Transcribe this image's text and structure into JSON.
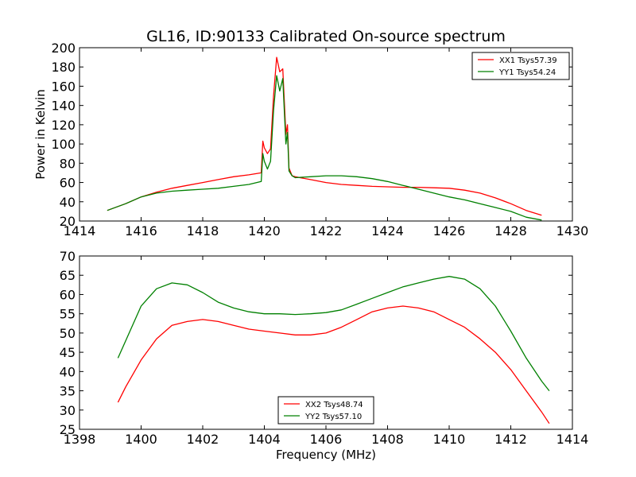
{
  "title": "GL16, ID:90133 Calibrated On-source spectrum",
  "chart_data": [
    {
      "type": "line",
      "xlim": [
        1414,
        1430
      ],
      "ylim": [
        20,
        200
      ],
      "xticks": [
        1414,
        1416,
        1418,
        1420,
        1422,
        1424,
        1426,
        1428,
        1430
      ],
      "yticks": [
        20,
        40,
        60,
        80,
        100,
        120,
        140,
        160,
        180,
        200
      ],
      "xlabel": "",
      "ylabel": "Power in Kelvin",
      "legend_position": "top-right",
      "series": [
        {
          "name": "XX1 Tsys57.39",
          "color": "#ff0000",
          "x": [
            1414.9,
            1415.5,
            1416.0,
            1416.5,
            1417.0,
            1417.5,
            1418.0,
            1418.5,
            1419.0,
            1419.5,
            1419.9,
            1419.95,
            1420.0,
            1420.1,
            1420.2,
            1420.3,
            1420.4,
            1420.5,
            1420.6,
            1420.7,
            1420.75,
            1420.8,
            1420.9,
            1421.0,
            1421.5,
            1422.0,
            1422.5,
            1423.0,
            1423.5,
            1424.0,
            1424.5,
            1425.0,
            1425.5,
            1426.0,
            1426.5,
            1427.0,
            1427.5,
            1428.0,
            1428.5,
            1429.0
          ],
          "values": [
            31,
            38,
            45,
            50,
            54,
            57,
            60,
            63,
            66,
            68,
            70,
            103,
            96,
            90,
            95,
            150,
            190,
            175,
            178,
            110,
            120,
            75,
            67,
            66,
            63,
            60,
            58,
            57,
            56,
            55.5,
            55,
            55,
            54.5,
            54,
            52,
            49,
            44,
            38,
            31,
            26
          ]
        },
        {
          "name": "YY1 Tsys54.24",
          "color": "#008000",
          "x": [
            1414.9,
            1415.5,
            1416.0,
            1416.5,
            1417.0,
            1417.5,
            1418.0,
            1418.5,
            1419.0,
            1419.5,
            1419.9,
            1419.95,
            1420.0,
            1420.1,
            1420.2,
            1420.3,
            1420.4,
            1420.5,
            1420.6,
            1420.7,
            1420.75,
            1420.8,
            1420.9,
            1421.0,
            1421.5,
            1422.0,
            1422.5,
            1423.0,
            1423.5,
            1424.0,
            1424.5,
            1425.0,
            1425.5,
            1426.0,
            1426.5,
            1427.0,
            1427.5,
            1428.0,
            1428.5,
            1429.0
          ],
          "values": [
            31,
            38,
            45,
            49,
            51,
            52,
            53,
            54,
            56,
            58,
            61,
            90,
            82,
            74,
            82,
            135,
            171,
            155,
            168,
            100,
            112,
            72,
            67,
            65,
            66,
            67,
            67,
            66,
            64,
            61,
            57,
            53,
            49,
            45,
            42,
            38,
            34,
            30,
            24,
            21
          ]
        }
      ]
    },
    {
      "type": "line",
      "xlim": [
        1398,
        1414
      ],
      "ylim": [
        25,
        70
      ],
      "xticks": [
        1398,
        1400,
        1402,
        1404,
        1406,
        1408,
        1410,
        1412,
        1414
      ],
      "yticks": [
        25,
        30,
        35,
        40,
        45,
        50,
        55,
        60,
        65,
        70
      ],
      "xlabel": "Frequency (MHz)",
      "ylabel": "",
      "legend_position": "bottom-center",
      "series": [
        {
          "name": "XX2 Tsys48.74",
          "color": "#ff0000",
          "x": [
            1399.25,
            1399.5,
            1400.0,
            1400.5,
            1401.0,
            1401.5,
            1402.0,
            1402.5,
            1403.0,
            1403.5,
            1404.0,
            1404.5,
            1405.0,
            1405.5,
            1406.0,
            1406.5,
            1407.0,
            1407.5,
            1408.0,
            1408.5,
            1409.0,
            1409.5,
            1410.0,
            1410.5,
            1411.0,
            1411.5,
            1412.0,
            1412.5,
            1413.0,
            1413.25
          ],
          "values": [
            32,
            36,
            43,
            48.5,
            52,
            53,
            53.5,
            53,
            52,
            51,
            50.5,
            50,
            49.5,
            49.5,
            50,
            51.5,
            53.5,
            55.5,
            56.5,
            57,
            56.5,
            55.5,
            53.5,
            51.5,
            48.5,
            45,
            40.5,
            35,
            29.5,
            26.5
          ]
        },
        {
          "name": "YY2 Tsys57.10",
          "color": "#008000",
          "x": [
            1399.25,
            1399.5,
            1400.0,
            1400.5,
            1401.0,
            1401.5,
            1402.0,
            1402.5,
            1403.0,
            1403.5,
            1404.0,
            1404.5,
            1405.0,
            1405.5,
            1406.0,
            1406.5,
            1407.0,
            1407.5,
            1408.0,
            1408.5,
            1409.0,
            1409.5,
            1410.0,
            1410.5,
            1411.0,
            1411.5,
            1412.0,
            1412.5,
            1413.0,
            1413.25
          ],
          "values": [
            43.5,
            48,
            57,
            61.5,
            63,
            62.5,
            60.5,
            58,
            56.5,
            55.5,
            55,
            55,
            54.8,
            55,
            55.3,
            56,
            57.5,
            59,
            60.5,
            62,
            63,
            64,
            64.7,
            64,
            61.5,
            57,
            50.5,
            43.5,
            37.5,
            35
          ]
        }
      ]
    }
  ]
}
